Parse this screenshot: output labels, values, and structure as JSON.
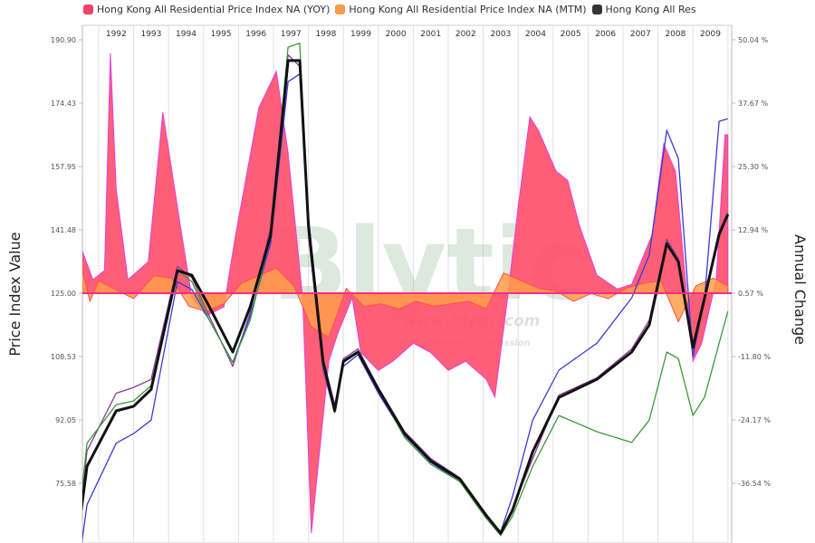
{
  "chart_data": {
    "type": "line",
    "title": "",
    "ylabel": "Price Index Value",
    "y2label": "Annual Change",
    "ylim": [
      59.11,
      190.9
    ],
    "y2lim": [
      -48.91,
      50.04
    ],
    "yticks": [
      "190.90",
      "174.43",
      "157.95",
      "141.48",
      "125.00",
      "108.53",
      "92.05",
      "75.58"
    ],
    "y2ticks": [
      "50.04 %",
      "37.67 %",
      "25.30 %",
      "12.94 %",
      "0.57 %",
      "-11.80 %",
      "-24.17 %",
      "-36.54 %"
    ],
    "xticks": [
      "1992",
      "1993",
      "1994",
      "1995",
      "1996",
      "1997",
      "1998",
      "1999",
      "2000",
      "2001",
      "2002",
      "2003",
      "2004",
      "2005",
      "2006",
      "2007",
      "2008",
      "2009"
    ],
    "grid": true,
    "legend_position": "top",
    "legend": [
      {
        "label": "Hong Kong All Residential Price Index NA (YOY)",
        "color": "#f0426a"
      },
      {
        "label": "Hong Kong All Residential Price Index NA (MTM)",
        "color": "#f99a4a"
      },
      {
        "label": "Hong Kong All Res",
        "color": "#333333"
      }
    ],
    "series": [
      {
        "name": "Hong Kong All Residential Price Index NA (YOY)",
        "kind": "area",
        "axis": "right",
        "color": "#ff4d6a",
        "x": [
          "1991-07",
          "1991-11",
          "1992-03",
          "1992-05",
          "1992-07",
          "1992-11",
          "1993-06",
          "1993-11",
          "1994-05",
          "1994-09",
          "1995-02",
          "1995-08",
          "1995-12",
          "1996-08",
          "1997-02",
          "1997-06",
          "1997-11",
          "1998-02",
          "1998-08",
          "1998-11",
          "1999-04",
          "1999-07",
          "2000-01",
          "2000-06",
          "2001-01",
          "2001-07",
          "2002-01",
          "2002-07",
          "2003-02",
          "2003-05",
          "2003-09",
          "2004-01",
          "2004-05",
          "2004-08",
          "2005-02",
          "2005-06",
          "2005-10",
          "2006-04",
          "2006-11",
          "2007-04",
          "2007-11",
          "2008-03",
          "2008-07",
          "2009-01",
          "2009-04",
          "2009-09",
          "2009-12",
          "2010-01"
        ],
        "values": [
          9.4,
          3.2,
          5.0,
          47.4,
          20.9,
          3.2,
          6.7,
          35.9,
          13.8,
          -0.3,
          -3.8,
          -2.1,
          12.0,
          36.8,
          43.9,
          28.0,
          -0.3,
          -46.3,
          -12.7,
          -7.4,
          -0.3,
          -11.0,
          -14.5,
          -12.7,
          -9.2,
          -11.0,
          -14.5,
          -12.7,
          -16.2,
          -19.7,
          -2.1,
          17.4,
          35.0,
          32.3,
          24.4,
          22.6,
          13.8,
          4.1,
          1.4,
          2.3,
          12.0,
          29.7,
          24.4,
          -12.7,
          -9.2,
          3.2,
          31.5,
          31.5
        ]
      },
      {
        "name": "Hong Kong All Residential Price Index NA (MTM)",
        "kind": "area",
        "axis": "right",
        "color": "#ff9f4a",
        "x": [
          "1991-07",
          "1991-10",
          "1992-01",
          "1992-06",
          "1993-01",
          "1993-08",
          "1994-02",
          "1994-08",
          "1995-02",
          "1995-08",
          "1996-02",
          "1996-08",
          "1997-02",
          "1997-08",
          "1998-02",
          "1998-08",
          "1999-02",
          "1999-08",
          "2000-02",
          "2000-08",
          "2001-02",
          "2001-08",
          "2002-02",
          "2002-08",
          "2003-02",
          "2003-08",
          "2004-02",
          "2004-08",
          "2005-02",
          "2005-08",
          "2006-02",
          "2006-08",
          "2007-02",
          "2007-08",
          "2008-02",
          "2008-08",
          "2009-02",
          "2009-08",
          "2010-01"
        ],
        "values": [
          6.0,
          -1.0,
          3.0,
          1.5,
          -0.5,
          4.0,
          3.5,
          -2.0,
          -3.0,
          -1.5,
          2.5,
          4.0,
          5.5,
          2.0,
          -6.0,
          -8.0,
          1.5,
          -2.0,
          -1.5,
          -2.5,
          -1.0,
          -2.0,
          -1.5,
          -1.0,
          -2.5,
          4.5,
          3.0,
          1.5,
          1.0,
          -1.0,
          0.5,
          -0.5,
          1.5,
          2.5,
          3.0,
          -5.0,
          2.0,
          3.5,
          2.0
        ]
      },
      {
        "name": "Hong Kong All Res",
        "kind": "line",
        "axis": "left",
        "color": "#111111",
        "x": [
          "1991-07",
          "1991-09",
          "1992-07",
          "1993-01",
          "1993-07",
          "1994-04",
          "1994-09",
          "1995-03",
          "1995-11",
          "1996-05",
          "1996-12",
          "1997-06",
          "1997-10",
          "1998-01",
          "1998-06",
          "1998-10",
          "1999-01",
          "1999-06",
          "2000-01",
          "2000-10",
          "2001-07",
          "2002-05",
          "2003-02",
          "2003-07",
          "2003-11",
          "2004-06",
          "2005-03",
          "2006-04",
          "2007-04",
          "2007-10",
          "2008-04",
          "2008-08",
          "2009-01",
          "2009-05",
          "2009-10",
          "2010-01"
        ],
        "values": [
          68.5,
          80.0,
          94.4,
          95.6,
          100.0,
          130.9,
          129.7,
          121.5,
          109.7,
          121.5,
          140.0,
          185.5,
          185.5,
          142.6,
          107.3,
          94.4,
          107.3,
          109.7,
          100.0,
          88.5,
          81.4,
          76.7,
          67.3,
          62.6,
          68.5,
          83.8,
          97.9,
          102.6,
          109.7,
          116.8,
          137.9,
          133.2,
          110.9,
          123.8,
          140.3,
          145.5
        ]
      },
      {
        "kind": "line",
        "axis": "left",
        "color": "#8a3a9a",
        "x": [
          "1991-07",
          "1991-09",
          "1992-07",
          "1993-01",
          "1993-07",
          "1994-04",
          "1994-09",
          "1995-03",
          "1995-11",
          "1996-05",
          "1996-12",
          "1997-06",
          "1997-10",
          "1998-01",
          "1998-06",
          "1998-10",
          "1999-01",
          "1999-06",
          "2000-01",
          "2000-10",
          "2001-07",
          "2002-05",
          "2003-02",
          "2003-07",
          "2003-11",
          "2004-06",
          "2005-03",
          "2006-04",
          "2007-04",
          "2007-10",
          "2008-04",
          "2008-08",
          "2009-01",
          "2009-05",
          "2009-10",
          "2010-01"
        ],
        "values": [
          70.0,
          84.0,
          99.0,
          100.5,
          102.6,
          132.0,
          129.0,
          119.0,
          106.0,
          120.0,
          142.0,
          187.0,
          184.0,
          140.0,
          105.0,
          94.0,
          108.0,
          110.5,
          100.5,
          89.0,
          82.0,
          77.0,
          67.0,
          62.0,
          69.0,
          82.0,
          98.5,
          103.0,
          110.5,
          118.0,
          139.0,
          134.0,
          109.0,
          124.0,
          141.0,
          146.0
        ]
      },
      {
        "kind": "line",
        "axis": "left",
        "color": "#3a3ad8",
        "x": [
          "1991-07",
          "1991-09",
          "1992-07",
          "1993-01",
          "1993-07",
          "1994-04",
          "1994-09",
          "1995-03",
          "1995-11",
          "1996-05",
          "1996-12",
          "1997-06",
          "1997-10",
          "1998-01",
          "1998-06",
          "1998-10",
          "1999-01",
          "1999-06",
          "2000-01",
          "2000-10",
          "2001-07",
          "2002-05",
          "2003-02",
          "2003-07",
          "2003-11",
          "2004-06",
          "2005-03",
          "2006-04",
          "2007-04",
          "2007-10",
          "2008-04",
          "2008-08",
          "2009-01",
          "2009-05",
          "2009-10",
          "2010-01"
        ],
        "values": [
          59.0,
          70.0,
          86.0,
          88.5,
          92.0,
          128.0,
          126.0,
          118.0,
          107.0,
          119.0,
          138.0,
          180.0,
          182.0,
          145.0,
          108.0,
          96.0,
          106.0,
          109.0,
          99.0,
          88.0,
          81.0,
          76.0,
          67.0,
          63.0,
          72.0,
          92.0,
          105.0,
          112.0,
          123.8,
          135.0,
          167.4,
          160.0,
          108.5,
          123.8,
          169.7,
          170.4
        ]
      },
      {
        "kind": "line",
        "axis": "left",
        "color": "#3a9a3a",
        "x": [
          "1991-07",
          "1991-09",
          "1992-07",
          "1993-01",
          "1993-07",
          "1994-04",
          "1994-09",
          "1995-03",
          "1995-11",
          "1996-05",
          "1996-12",
          "1997-06",
          "1997-10",
          "1998-01",
          "1998-06",
          "1998-10",
          "1999-01",
          "1999-06",
          "2000-01",
          "2000-10",
          "2001-07",
          "2002-05",
          "2003-02",
          "2003-07",
          "2003-11",
          "2004-06",
          "2005-03",
          "2006-04",
          "2007-04",
          "2007-10",
          "2008-04",
          "2008-08",
          "2009-01",
          "2009-05",
          "2009-10",
          "2010-01"
        ],
        "values": [
          72.0,
          86.0,
          96.0,
          97.0,
          101.0,
          131.0,
          128.0,
          118.0,
          107.0,
          118.0,
          140.0,
          189.0,
          190.0,
          143.0,
          106.0,
          95.0,
          107.0,
          109.5,
          100.0,
          87.5,
          80.5,
          76.0,
          66.5,
          62.0,
          67.0,
          80.0,
          93.2,
          89.0,
          86.2,
          92.0,
          109.7,
          108.0,
          93.2,
          98.0,
          112.0,
          120.3
        ]
      }
    ]
  },
  "watermark": {
    "logo": "Blytic",
    "url": "www.blytic.com",
    "tagline": "Data - Analysis - Discussion"
  }
}
